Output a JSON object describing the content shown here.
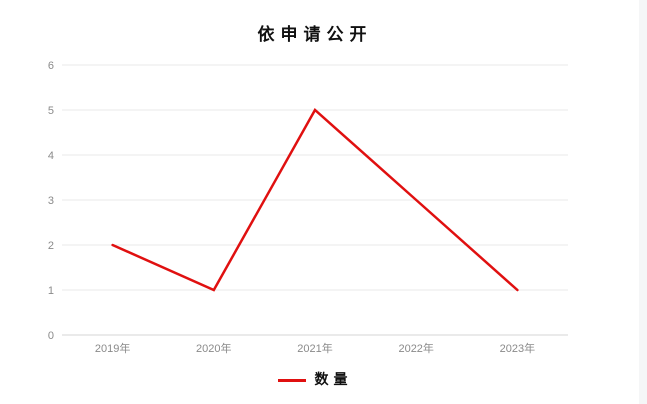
{
  "chart_data": {
    "type": "line",
    "title": "依申请公开",
    "categories": [
      "2019年",
      "2020年",
      "2021年",
      "2022年",
      "2023年"
    ],
    "series": [
      {
        "name": "数量",
        "values": [
          2,
          1,
          5,
          3,
          1
        ],
        "color": "#e01010"
      }
    ],
    "xlabel": "",
    "ylabel": "",
    "ylim": [
      0,
      6
    ],
    "ytick_step": 1,
    "yticks": [
      0,
      1,
      2,
      3,
      4,
      5,
      6
    ],
    "grid": true,
    "legend_position": "bottom"
  },
  "colors": {
    "line": "#e01010",
    "grid": "#e8e8e8",
    "axis": "#d4d4d4",
    "tick_label": "#8a8a8a",
    "title_text": "#111111",
    "background": "#ffffff",
    "right_edge": "#f5f6f7"
  }
}
